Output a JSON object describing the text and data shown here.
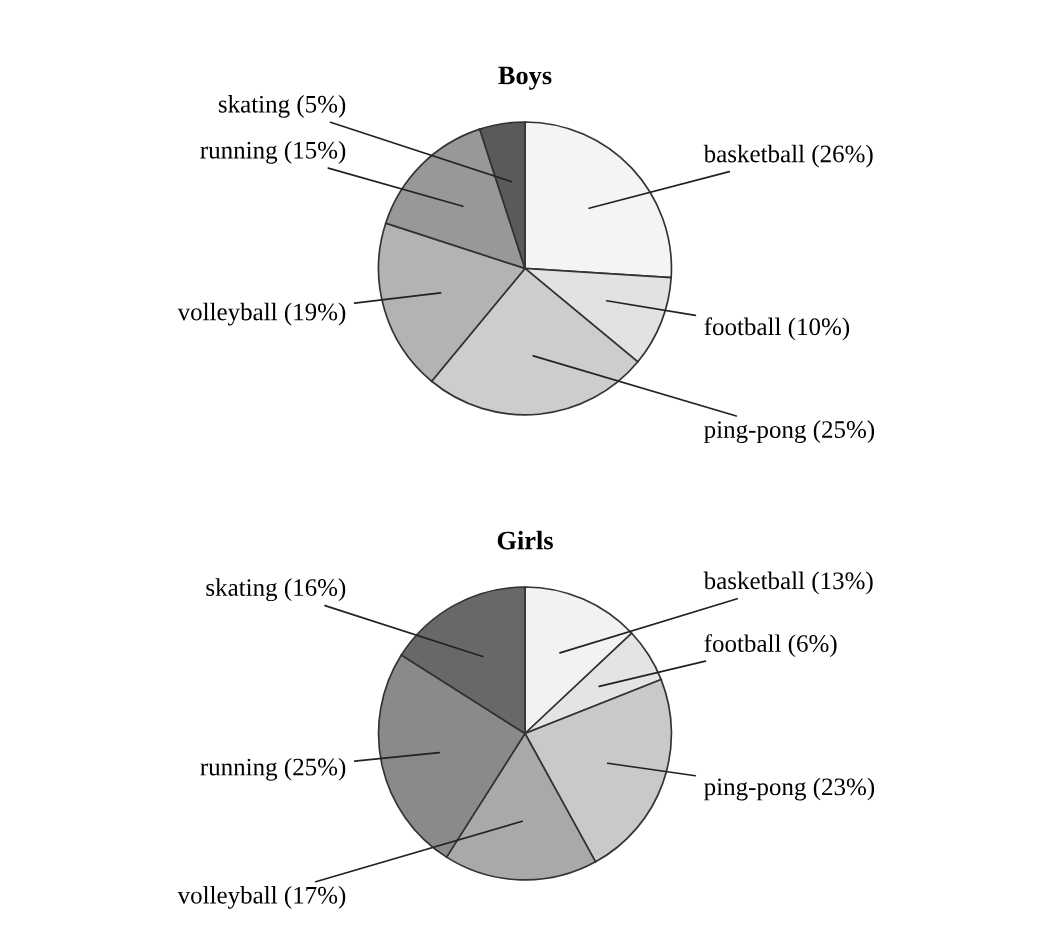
{
  "chart_data": [
    {
      "type": "pie",
      "title": "Boys",
      "categories": [
        "basketball",
        "football",
        "ping-pong",
        "volleyball",
        "running",
        "skating"
      ],
      "values": [
        26,
        10,
        25,
        19,
        15,
        5
      ],
      "value_labels": [
        "(26%)",
        "(10%)",
        "(25%)",
        "(19%)",
        "(15%)",
        "(5%)"
      ],
      "colors": [
        "#f4f4f4",
        "#e2e2e2",
        "#cdcdcd",
        "#b3b3b3",
        "#989898",
        "#5a5a5a"
      ]
    },
    {
      "type": "pie",
      "title": "Girls",
      "categories": [
        "basketball",
        "football",
        "ping-pong",
        "volleyball",
        "running",
        "skating"
      ],
      "values": [
        13,
        6,
        23,
        17,
        25,
        16
      ],
      "value_labels": [
        "(13%)",
        "(6%)",
        "(23%)",
        "(17%)",
        "(25%)",
        "(16%)"
      ],
      "colors": [
        "#f2f2f2",
        "#e4e4e4",
        "#c9c9c9",
        "#a9a9a9",
        "#8a8a8a",
        "#686868"
      ]
    }
  ]
}
